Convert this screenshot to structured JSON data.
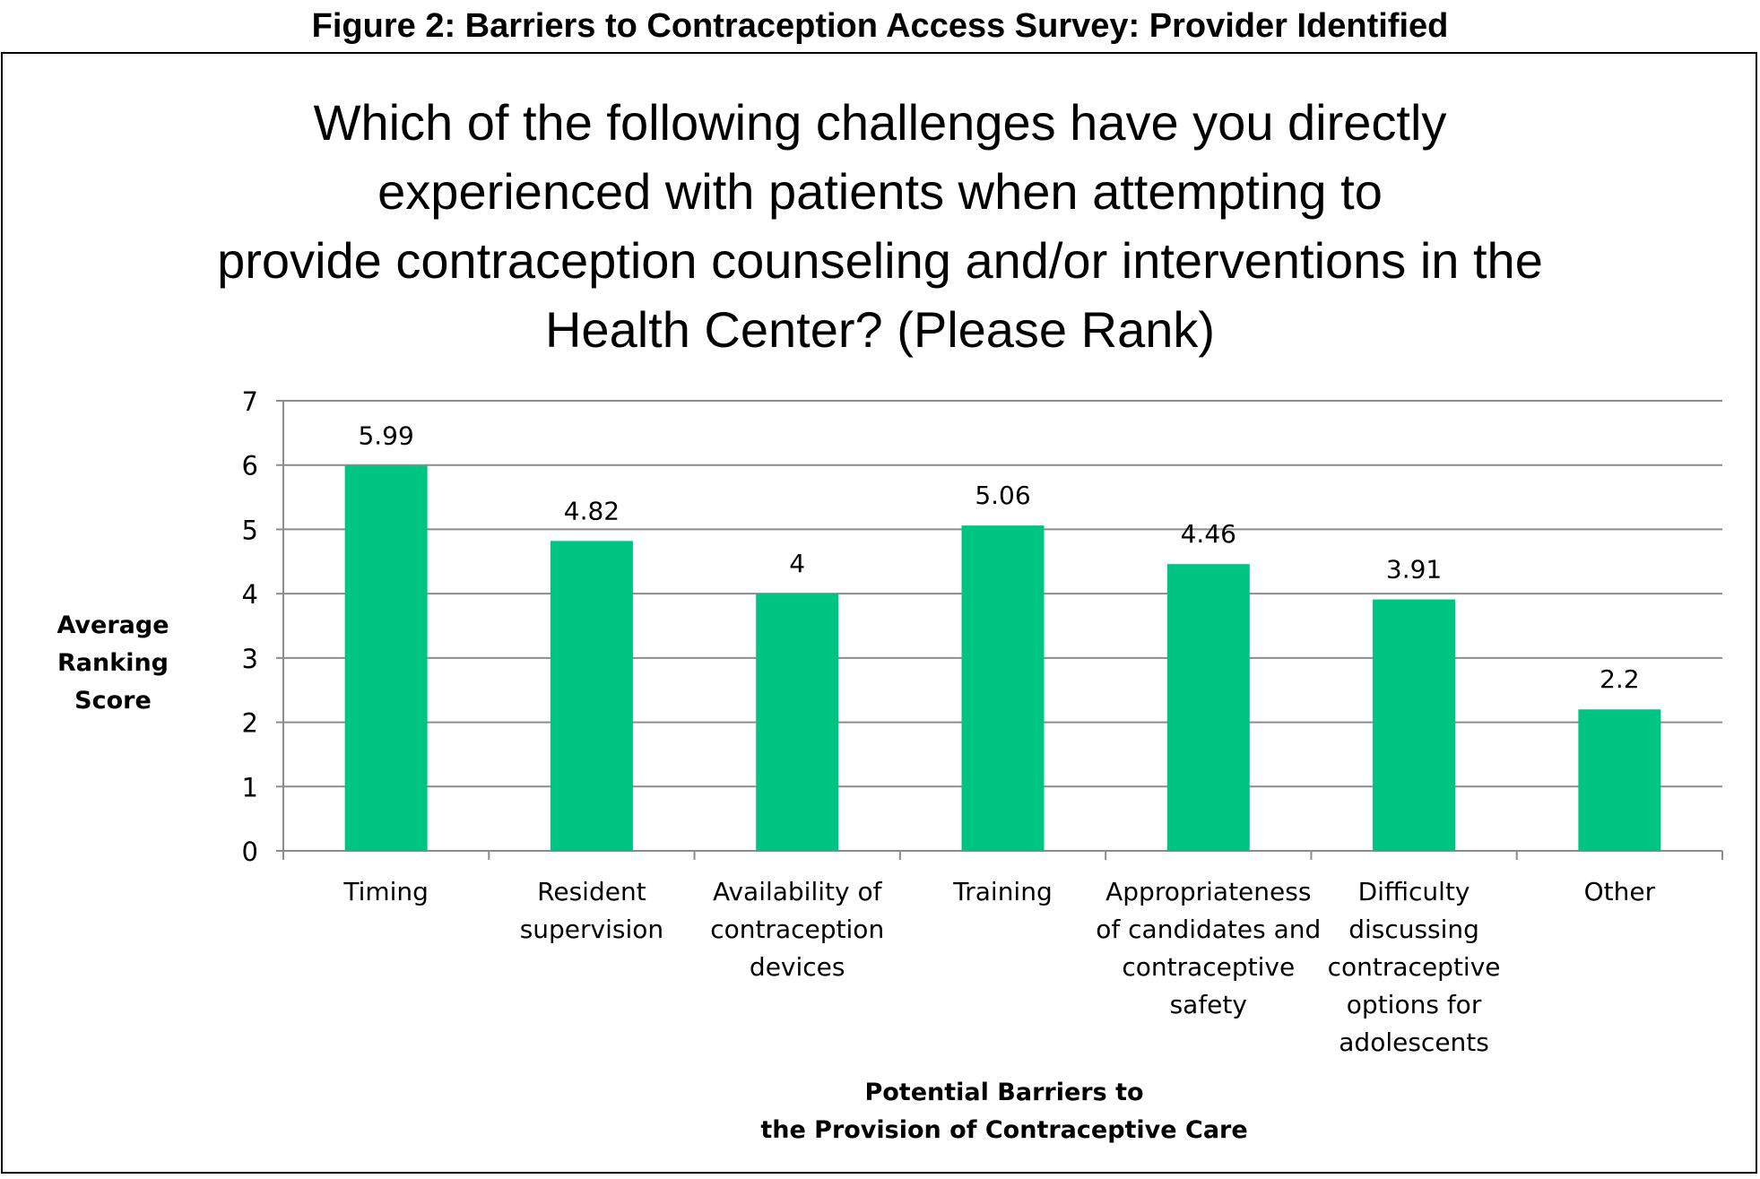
{
  "figure_caption": "Figure 2: Barriers to Contraception Access Survey: Provider Identified",
  "colors": {
    "bar": "#00c582",
    "grid": "#8c8c8c",
    "axis": "#8c8c8c",
    "text": "#000000"
  },
  "chart_data": {
    "type": "bar",
    "title_lines": [
      "Which of the following challenges have you directly",
      "experienced with patients when attempting to",
      "provide contraception counseling and/or interventions in the",
      "Health Center? (Please Rank)"
    ],
    "ylabel_lines": [
      "Average Ranking",
      "Score"
    ],
    "xlabel_lines": [
      "Potential Barriers to",
      "the Provision of Contraceptive Care"
    ],
    "categories": [
      [
        "Timing"
      ],
      [
        "Resident",
        "supervision"
      ],
      [
        "Availability of",
        "contraception",
        "devices"
      ],
      [
        "Training"
      ],
      [
        "Appropriateness",
        "of candidates and",
        "contraceptive",
        "safety"
      ],
      [
        "Difficulty",
        "discussing",
        "contraceptive",
        "options for",
        "adolescents"
      ],
      [
        "Other"
      ]
    ],
    "values": [
      5.99,
      4.82,
      4,
      5.06,
      4.46,
      3.91,
      2.2
    ],
    "value_labels": [
      "5.99",
      "4.82",
      "4",
      "5.06",
      "4.46",
      "3.91",
      "2.2"
    ],
    "ylim": [
      0,
      7
    ],
    "yticks": [
      0,
      1,
      2,
      3,
      4,
      5,
      6,
      7
    ],
    "grid": true,
    "legend": "none"
  }
}
